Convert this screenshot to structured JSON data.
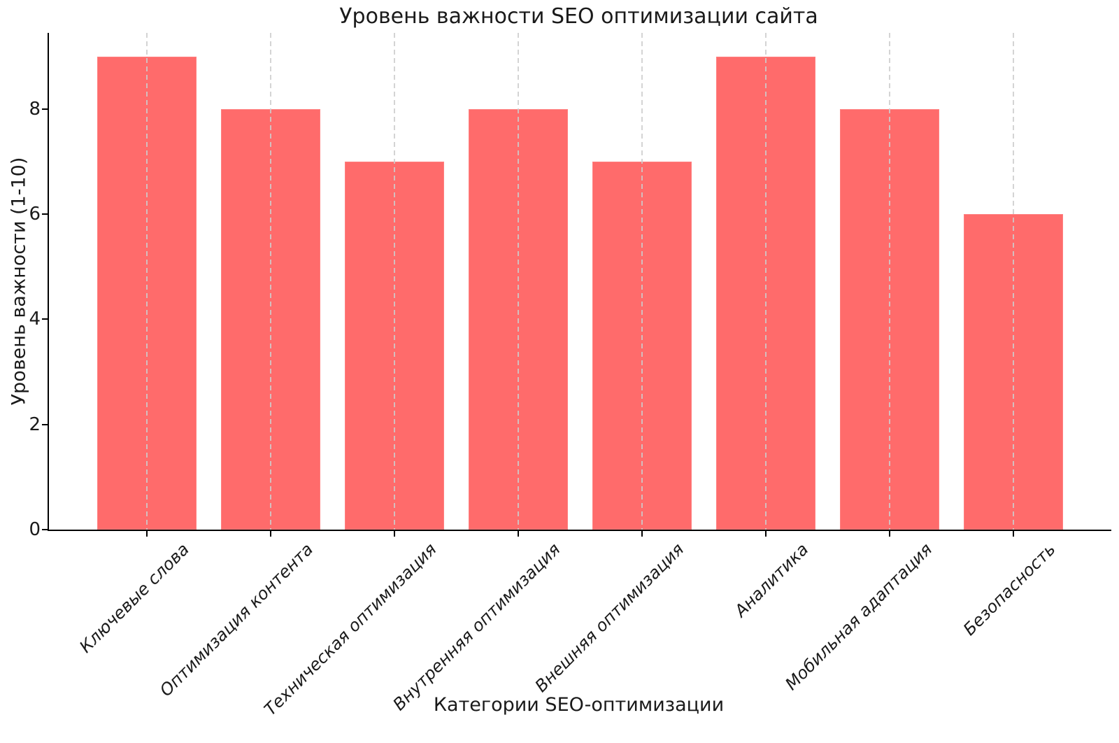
{
  "chart_data": {
    "type": "bar",
    "title": "Уровень важности SEO оптимизации сайта",
    "xlabel": "Категории SEO-оптимизации",
    "ylabel": "Уровень важности (1-10)",
    "categories": [
      "Ключевые слова",
      "Оптимизация контента",
      "Техническая оптимизация",
      "Внутренняя оптимизация",
      "Внешняя оптимизация",
      "Аналитика",
      "Мобильная адаптация",
      "Безопасность"
    ],
    "values": [
      9,
      8,
      7,
      8,
      7,
      9,
      8,
      6
    ],
    "ylim": [
      0,
      9.45
    ],
    "yticks": [
      0,
      2,
      4,
      6,
      8
    ],
    "bar_color": "#ff6b6b",
    "gridline_color": "#cdcdcd",
    "grid": "vertical-dashed-on-top",
    "legend": "none",
    "x_tick_style": "italic, rotated 45deg",
    "spine_color": "#000000"
  }
}
